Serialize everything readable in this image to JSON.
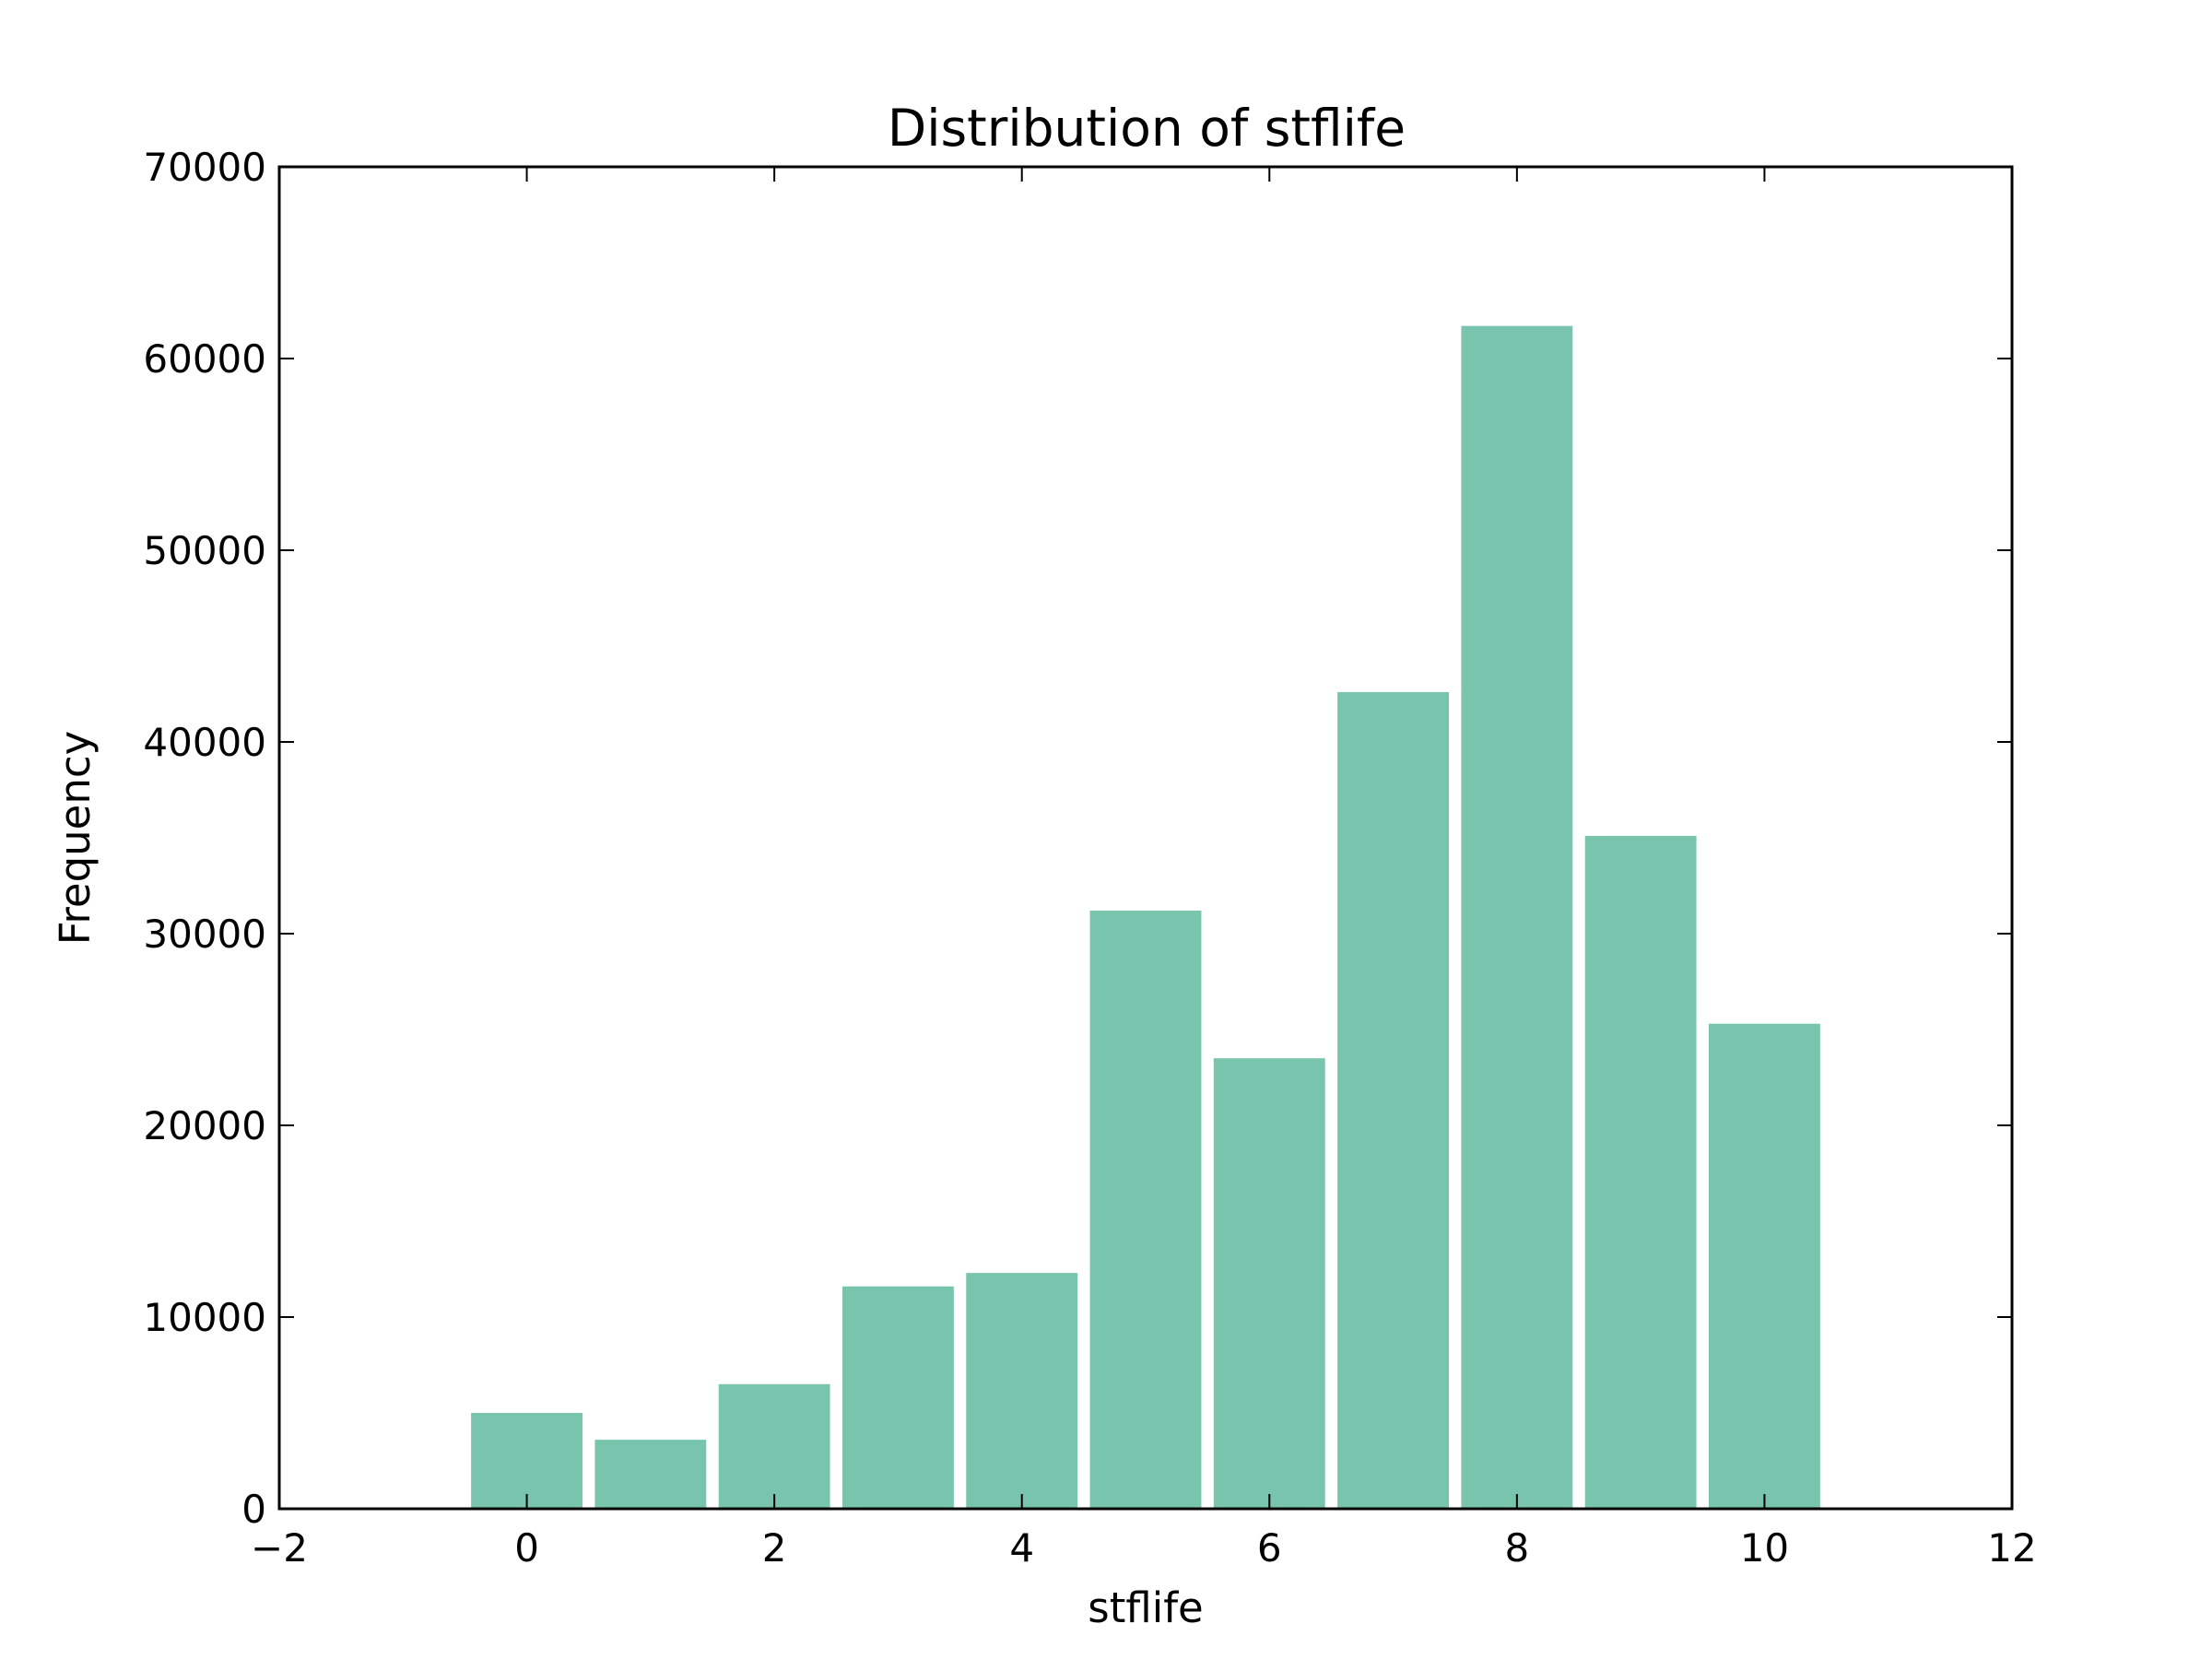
{
  "chart_data": {
    "type": "bar",
    "title": "Distribution of stflife",
    "xlabel": "stflife",
    "ylabel": "Frequency",
    "xlim": [
      -2,
      12
    ],
    "ylim": [
      0,
      70000
    ],
    "xticks": [
      -2,
      0,
      2,
      4,
      6,
      8,
      10,
      12
    ],
    "xtick_labels": [
      "−2",
      "0",
      "2",
      "4",
      "6",
      "8",
      "10",
      "12"
    ],
    "yticks": [
      0,
      10000,
      20000,
      30000,
      40000,
      50000,
      60000,
      70000
    ],
    "ytick_labels": [
      "0",
      "10000",
      "20000",
      "30000",
      "40000",
      "50000",
      "60000",
      "70000"
    ],
    "bar_width": 0.9,
    "bar_color": "#78c4ad",
    "grid": false,
    "x": [
      0,
      1,
      2,
      3,
      4,
      5,
      6,
      7,
      8,
      9,
      10
    ],
    "values": [
      5000,
      3600,
      6500,
      11600,
      12300,
      31200,
      23500,
      42600,
      61700,
      35100,
      25300
    ]
  }
}
